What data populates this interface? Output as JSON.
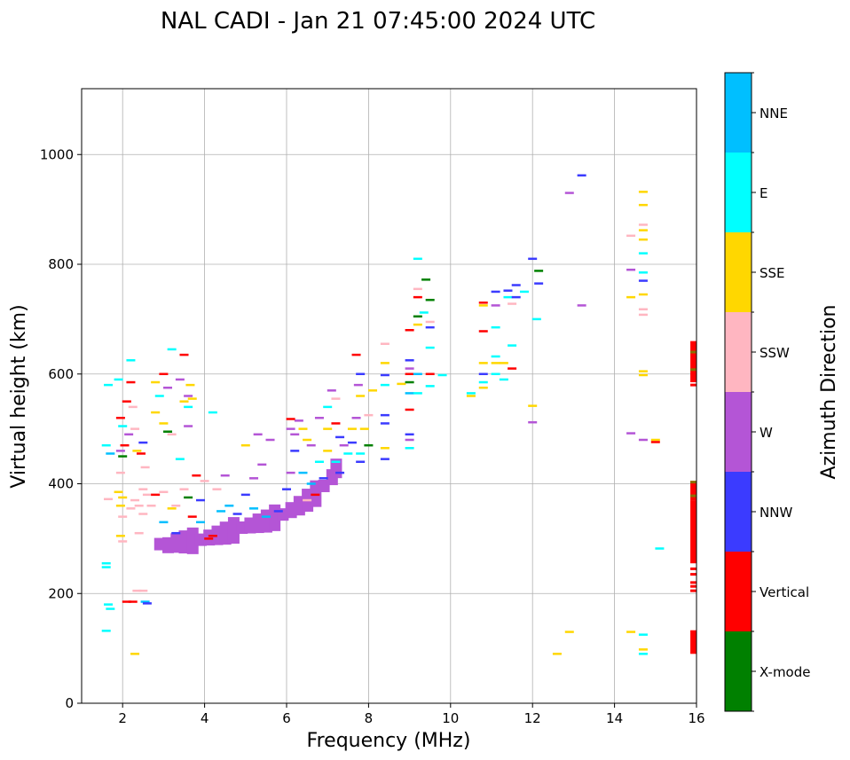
{
  "chart_data": {
    "type": "scatter",
    "title": "NAL CADI - Jan 21 07:45:00 2024 UTC",
    "xlabel": "Frequency (MHz)",
    "ylabel": "Virtual height (km)",
    "xlim": [
      1,
      16
    ],
    "ylim": [
      0,
      1120
    ],
    "xticks": [
      2,
      4,
      6,
      8,
      10,
      12,
      14,
      16
    ],
    "yticks": [
      0,
      200,
      400,
      600,
      800,
      1000
    ],
    "grid": true,
    "colorbar": {
      "label": "Azimuth Direction",
      "categories": [
        "X-mode",
        "Vertical",
        "NNW",
        "W",
        "SSW",
        "SSE",
        "E",
        "NNE"
      ],
      "colors": [
        "#008000",
        "#ff0000",
        "#3b3bff",
        "#b455d6",
        "#ffb6c1",
        "#ffd700",
        "#00ffff",
        "#00bfff"
      ]
    },
    "points": [
      {
        "x": 1.65,
        "y": 580,
        "c": "E"
      },
      {
        "x": 1.6,
        "y": 470,
        "c": "E"
      },
      {
        "x": 1.7,
        "y": 455,
        "c": "NNE"
      },
      {
        "x": 1.6,
        "y": 255,
        "c": "E"
      },
      {
        "x": 1.6,
        "y": 248,
        "c": "E"
      },
      {
        "x": 1.65,
        "y": 180,
        "c": "E"
      },
      {
        "x": 1.7,
        "y": 172,
        "c": "E"
      },
      {
        "x": 1.6,
        "y": 132,
        "c": "E"
      },
      {
        "x": 1.65,
        "y": 372,
        "c": "SSW"
      },
      {
        "x": 1.9,
        "y": 590,
        "c": "E"
      },
      {
        "x": 1.95,
        "y": 520,
        "c": "Vertical"
      },
      {
        "x": 2.0,
        "y": 505,
        "c": "E"
      },
      {
        "x": 1.95,
        "y": 460,
        "c": "W"
      },
      {
        "x": 2.05,
        "y": 470,
        "c": "Vertical"
      },
      {
        "x": 2.0,
        "y": 450,
        "c": "X-mode"
      },
      {
        "x": 1.95,
        "y": 420,
        "c": "SSW"
      },
      {
        "x": 1.9,
        "y": 385,
        "c": "SSE"
      },
      {
        "x": 2.0,
        "y": 375,
        "c": "SSE"
      },
      {
        "x": 1.95,
        "y": 360,
        "c": "SSE"
      },
      {
        "x": 2.0,
        "y": 340,
        "c": "SSW"
      },
      {
        "x": 1.95,
        "y": 305,
        "c": "SSE"
      },
      {
        "x": 2.0,
        "y": 295,
        "c": "SSW"
      },
      {
        "x": 2.1,
        "y": 550,
        "c": "Vertical"
      },
      {
        "x": 2.15,
        "y": 490,
        "c": "W"
      },
      {
        "x": 2.2,
        "y": 625,
        "c": "E"
      },
      {
        "x": 2.2,
        "y": 585,
        "c": "Vertical"
      },
      {
        "x": 2.25,
        "y": 540,
        "c": "SSW"
      },
      {
        "x": 2.3,
        "y": 500,
        "c": "SSW"
      },
      {
        "x": 2.35,
        "y": 460,
        "c": "SSE"
      },
      {
        "x": 2.45,
        "y": 455,
        "c": "Vertical"
      },
      {
        "x": 2.5,
        "y": 475,
        "c": "NNW"
      },
      {
        "x": 2.55,
        "y": 430,
        "c": "SSW"
      },
      {
        "x": 2.5,
        "y": 390,
        "c": "SSW"
      },
      {
        "x": 2.3,
        "y": 370,
        "c": "SSW"
      },
      {
        "x": 2.4,
        "y": 360,
        "c": "SSW"
      },
      {
        "x": 2.2,
        "y": 355,
        "c": "SSW"
      },
      {
        "x": 2.6,
        "y": 380,
        "c": "SSW"
      },
      {
        "x": 2.7,
        "y": 360,
        "c": "SSW"
      },
      {
        "x": 2.5,
        "y": 345,
        "c": "SSW"
      },
      {
        "x": 2.4,
        "y": 310,
        "c": "SSW"
      },
      {
        "x": 2.1,
        "y": 185,
        "c": "Vertical"
      },
      {
        "x": 2.25,
        "y": 185,
        "c": "Vertical"
      },
      {
        "x": 2.35,
        "y": 205,
        "c": "SSW"
      },
      {
        "x": 2.5,
        "y": 205,
        "c": "SSW"
      },
      {
        "x": 2.55,
        "y": 185,
        "c": "NNE"
      },
      {
        "x": 2.6,
        "y": 182,
        "c": "NNW"
      },
      {
        "x": 2.3,
        "y": 90,
        "c": "SSE"
      },
      {
        "x": 2.8,
        "y": 585,
        "c": "SSE"
      },
      {
        "x": 2.8,
        "y": 530,
        "c": "SSE"
      },
      {
        "x": 2.9,
        "y": 560,
        "c": "E"
      },
      {
        "x": 3.0,
        "y": 600,
        "c": "Vertical"
      },
      {
        "x": 3.1,
        "y": 575,
        "c": "W"
      },
      {
        "x": 3.2,
        "y": 645,
        "c": "E"
      },
      {
        "x": 3.0,
        "y": 510,
        "c": "SSE"
      },
      {
        "x": 3.1,
        "y": 495,
        "c": "X-mode"
      },
      {
        "x": 3.2,
        "y": 490,
        "c": "SSW"
      },
      {
        "x": 3.4,
        "y": 590,
        "c": "W"
      },
      {
        "x": 3.5,
        "y": 550,
        "c": "SSE"
      },
      {
        "x": 3.6,
        "y": 540,
        "c": "E"
      },
      {
        "x": 3.5,
        "y": 635,
        "c": "Vertical"
      },
      {
        "x": 3.65,
        "y": 580,
        "c": "SSE"
      },
      {
        "x": 3.6,
        "y": 560,
        "c": "W"
      },
      {
        "x": 3.7,
        "y": 555,
        "c": "SSE"
      },
      {
        "x": 3.4,
        "y": 445,
        "c": "E"
      },
      {
        "x": 3.6,
        "y": 505,
        "c": "W"
      },
      {
        "x": 4.2,
        "y": 530,
        "c": "E"
      },
      {
        "x": 2.8,
        "y": 380,
        "c": "Vertical"
      },
      {
        "x": 3.0,
        "y": 385,
        "c": "SSW"
      },
      {
        "x": 3.3,
        "y": 360,
        "c": "SSW"
      },
      {
        "x": 3.5,
        "y": 390,
        "c": "SSW"
      },
      {
        "x": 3.6,
        "y": 375,
        "c": "X-mode"
      },
      {
        "x": 3.8,
        "y": 415,
        "c": "Vertical"
      },
      {
        "x": 4.0,
        "y": 405,
        "c": "SSW"
      },
      {
        "x": 3.2,
        "y": 355,
        "c": "SSE"
      },
      {
        "x": 3.0,
        "y": 330,
        "c": "NNE"
      },
      {
        "x": 3.3,
        "y": 310,
        "c": "NNW"
      },
      {
        "x": 3.7,
        "y": 340,
        "c": "Vertical"
      },
      {
        "x": 3.9,
        "y": 330,
        "c": "NNE"
      },
      {
        "x": 4.1,
        "y": 300,
        "c": "Vertical"
      },
      {
        "x": 4.2,
        "y": 305,
        "c": "Vertical"
      },
      {
        "x": 3.9,
        "y": 370,
        "c": "NNW"
      },
      {
        "x": 4.3,
        "y": 390,
        "c": "SSW"
      },
      {
        "x": 4.5,
        "y": 415,
        "c": "W"
      },
      {
        "x": 4.4,
        "y": 350,
        "c": "NNE"
      },
      {
        "x": 4.6,
        "y": 360,
        "c": "NNE"
      },
      {
        "x": 4.8,
        "y": 345,
        "c": "NNW"
      },
      {
        "x": 5.0,
        "y": 380,
        "c": "NNW"
      },
      {
        "x": 5.2,
        "y": 410,
        "c": "W"
      },
      {
        "x": 5.4,
        "y": 435,
        "c": "W"
      },
      {
        "x": 5.0,
        "y": 470,
        "c": "SSE"
      },
      {
        "x": 5.3,
        "y": 490,
        "c": "W"
      },
      {
        "x": 5.6,
        "y": 480,
        "c": "W"
      },
      {
        "x": 5.5,
        "y": 340,
        "c": "NNE"
      },
      {
        "x": 5.2,
        "y": 355,
        "c": "NNE"
      },
      {
        "x": 5.8,
        "y": 350,
        "c": "NNW"
      },
      {
        "x": 6.0,
        "y": 390,
        "c": "NNW"
      },
      {
        "x": 6.1,
        "y": 420,
        "c": "W"
      },
      {
        "x": 6.2,
        "y": 460,
        "c": "NNW"
      },
      {
        "x": 6.1,
        "y": 500,
        "c": "W"
      },
      {
        "x": 6.3,
        "y": 515,
        "c": "W"
      },
      {
        "x": 6.1,
        "y": 518,
        "c": "Vertical"
      },
      {
        "x": 6.2,
        "y": 490,
        "c": "W"
      },
      {
        "x": 6.4,
        "y": 500,
        "c": "SSE"
      },
      {
        "x": 6.5,
        "y": 480,
        "c": "SSE"
      },
      {
        "x": 6.6,
        "y": 470,
        "c": "W"
      },
      {
        "x": 6.4,
        "y": 420,
        "c": "NNE"
      },
      {
        "x": 6.6,
        "y": 400,
        "c": "NNE"
      },
      {
        "x": 6.8,
        "y": 440,
        "c": "E"
      },
      {
        "x": 6.9,
        "y": 410,
        "c": "NNW"
      },
      {
        "x": 6.7,
        "y": 380,
        "c": "Vertical"
      },
      {
        "x": 6.5,
        "y": 370,
        "c": "SSW"
      },
      {
        "x": 6.8,
        "y": 520,
        "c": "W"
      },
      {
        "x": 7.0,
        "y": 540,
        "c": "E"
      },
      {
        "x": 7.1,
        "y": 570,
        "c": "W"
      },
      {
        "x": 7.2,
        "y": 555,
        "c": "SSW"
      },
      {
        "x": 7.0,
        "y": 500,
        "c": "SSE"
      },
      {
        "x": 7.2,
        "y": 510,
        "c": "Vertical"
      },
      {
        "x": 7.3,
        "y": 485,
        "c": "NNW"
      },
      {
        "x": 7.0,
        "y": 460,
        "c": "SSE"
      },
      {
        "x": 7.2,
        "y": 440,
        "c": "E"
      },
      {
        "x": 7.4,
        "y": 470,
        "c": "W"
      },
      {
        "x": 7.3,
        "y": 420,
        "c": "NNW"
      },
      {
        "x": 7.5,
        "y": 455,
        "c": "E"
      },
      {
        "x": 7.6,
        "y": 500,
        "c": "SSE"
      },
      {
        "x": 7.7,
        "y": 520,
        "c": "W"
      },
      {
        "x": 7.8,
        "y": 560,
        "c": "SSE"
      },
      {
        "x": 7.75,
        "y": 580,
        "c": "W"
      },
      {
        "x": 7.8,
        "y": 600,
        "c": "NNW"
      },
      {
        "x": 7.7,
        "y": 635,
        "c": "Vertical"
      },
      {
        "x": 7.6,
        "y": 475,
        "c": "NNW"
      },
      {
        "x": 7.8,
        "y": 440,
        "c": "NNW"
      },
      {
        "x": 7.8,
        "y": 455,
        "c": "E"
      },
      {
        "x": 8.0,
        "y": 470,
        "c": "X-mode"
      },
      {
        "x": 7.9,
        "y": 500,
        "c": "SSE"
      },
      {
        "x": 8.0,
        "y": 525,
        "c": "SSW"
      },
      {
        "x": 8.1,
        "y": 570,
        "c": "SSE"
      },
      {
        "x": 8.4,
        "y": 445,
        "c": "NNW"
      },
      {
        "x": 8.4,
        "y": 465,
        "c": "SSE"
      },
      {
        "x": 8.4,
        "y": 510,
        "c": "NNW"
      },
      {
        "x": 8.4,
        "y": 525,
        "c": "NNW"
      },
      {
        "x": 8.4,
        "y": 580,
        "c": "E"
      },
      {
        "x": 8.4,
        "y": 598,
        "c": "NNW"
      },
      {
        "x": 8.4,
        "y": 620,
        "c": "SSE"
      },
      {
        "x": 8.4,
        "y": 655,
        "c": "SSW"
      },
      {
        "x": 8.8,
        "y": 582,
        "c": "SSE"
      },
      {
        "x": 9.0,
        "y": 465,
        "c": "E"
      },
      {
        "x": 9.0,
        "y": 480,
        "c": "W"
      },
      {
        "x": 9.0,
        "y": 490,
        "c": "NNW"
      },
      {
        "x": 9.0,
        "y": 535,
        "c": "Vertical"
      },
      {
        "x": 9.0,
        "y": 565,
        "c": "NNE"
      },
      {
        "x": 9.0,
        "y": 585,
        "c": "X-mode"
      },
      {
        "x": 9.0,
        "y": 600,
        "c": "Vertical"
      },
      {
        "x": 9.0,
        "y": 610,
        "c": "W"
      },
      {
        "x": 9.0,
        "y": 625,
        "c": "NNW"
      },
      {
        "x": 9.0,
        "y": 680,
        "c": "Vertical"
      },
      {
        "x": 9.2,
        "y": 565,
        "c": "E"
      },
      {
        "x": 9.2,
        "y": 600,
        "c": "NNE"
      },
      {
        "x": 9.2,
        "y": 690,
        "c": "SSE"
      },
      {
        "x": 9.2,
        "y": 705,
        "c": "X-mode"
      },
      {
        "x": 9.2,
        "y": 740,
        "c": "Vertical"
      },
      {
        "x": 9.2,
        "y": 755,
        "c": "SSW"
      },
      {
        "x": 9.2,
        "y": 810,
        "c": "E"
      },
      {
        "x": 9.35,
        "y": 712,
        "c": "E"
      },
      {
        "x": 9.4,
        "y": 772,
        "c": "X-mode"
      },
      {
        "x": 9.5,
        "y": 735,
        "c": "X-mode"
      },
      {
        "x": 9.5,
        "y": 695,
        "c": "SSW"
      },
      {
        "x": 9.5,
        "y": 685,
        "c": "NNW"
      },
      {
        "x": 9.5,
        "y": 648,
        "c": "E"
      },
      {
        "x": 9.5,
        "y": 600,
        "c": "Vertical"
      },
      {
        "x": 9.5,
        "y": 578,
        "c": "E"
      },
      {
        "x": 9.8,
        "y": 598,
        "c": "E"
      },
      {
        "x": 10.5,
        "y": 565,
        "c": "E"
      },
      {
        "x": 10.5,
        "y": 560,
        "c": "SSE"
      },
      {
        "x": 10.8,
        "y": 575,
        "c": "SSE"
      },
      {
        "x": 10.8,
        "y": 585,
        "c": "E"
      },
      {
        "x": 10.8,
        "y": 600,
        "c": "NNW"
      },
      {
        "x": 10.8,
        "y": 620,
        "c": "SSE"
      },
      {
        "x": 10.8,
        "y": 678,
        "c": "Vertical"
      },
      {
        "x": 10.8,
        "y": 730,
        "c": "Vertical"
      },
      {
        "x": 10.8,
        "y": 725,
        "c": "SSE"
      },
      {
        "x": 11.1,
        "y": 600,
        "c": "E"
      },
      {
        "x": 11.1,
        "y": 620,
        "c": "SSE"
      },
      {
        "x": 11.1,
        "y": 632,
        "c": "E"
      },
      {
        "x": 11.1,
        "y": 685,
        "c": "E"
      },
      {
        "x": 11.1,
        "y": 750,
        "c": "NNW"
      },
      {
        "x": 11.1,
        "y": 725,
        "c": "W"
      },
      {
        "x": 11.3,
        "y": 590,
        "c": "E"
      },
      {
        "x": 11.3,
        "y": 620,
        "c": "SSE"
      },
      {
        "x": 11.4,
        "y": 740,
        "c": "E"
      },
      {
        "x": 11.4,
        "y": 752,
        "c": "NNW"
      },
      {
        "x": 11.5,
        "y": 728,
        "c": "SSW"
      },
      {
        "x": 11.5,
        "y": 610,
        "c": "Vertical"
      },
      {
        "x": 11.5,
        "y": 652,
        "c": "E"
      },
      {
        "x": 11.6,
        "y": 740,
        "c": "NNW"
      },
      {
        "x": 11.6,
        "y": 762,
        "c": "NNW"
      },
      {
        "x": 11.8,
        "y": 750,
        "c": "E"
      },
      {
        "x": 12.0,
        "y": 810,
        "c": "NNW"
      },
      {
        "x": 12.0,
        "y": 542,
        "c": "SSE"
      },
      {
        "x": 12.0,
        "y": 512,
        "c": "W"
      },
      {
        "x": 12.1,
        "y": 700,
        "c": "E"
      },
      {
        "x": 12.15,
        "y": 765,
        "c": "NNW"
      },
      {
        "x": 12.15,
        "y": 788,
        "c": "X-mode"
      },
      {
        "x": 12.6,
        "y": 90,
        "c": "SSE"
      },
      {
        "x": 12.9,
        "y": 130,
        "c": "SSE"
      },
      {
        "x": 12.9,
        "y": 930,
        "c": "W"
      },
      {
        "x": 13.2,
        "y": 962,
        "c": "NNW"
      },
      {
        "x": 13.2,
        "y": 725,
        "c": "W"
      },
      {
        "x": 14.4,
        "y": 130,
        "c": "SSE"
      },
      {
        "x": 14.4,
        "y": 492,
        "c": "W"
      },
      {
        "x": 14.4,
        "y": 740,
        "c": "SSE"
      },
      {
        "x": 14.4,
        "y": 790,
        "c": "W"
      },
      {
        "x": 14.4,
        "y": 852,
        "c": "SSW"
      },
      {
        "x": 14.7,
        "y": 125,
        "c": "E"
      },
      {
        "x": 14.7,
        "y": 98,
        "c": "SSE"
      },
      {
        "x": 14.7,
        "y": 90,
        "c": "E"
      },
      {
        "x": 14.7,
        "y": 480,
        "c": "W"
      },
      {
        "x": 14.7,
        "y": 598,
        "c": "SSE"
      },
      {
        "x": 14.7,
        "y": 605,
        "c": "SSE"
      },
      {
        "x": 14.7,
        "y": 708,
        "c": "SSW"
      },
      {
        "x": 14.7,
        "y": 718,
        "c": "SSW"
      },
      {
        "x": 14.7,
        "y": 745,
        "c": "SSE"
      },
      {
        "x": 14.7,
        "y": 770,
        "c": "NNW"
      },
      {
        "x": 14.7,
        "y": 785,
        "c": "E"
      },
      {
        "x": 14.7,
        "y": 820,
        "c": "E"
      },
      {
        "x": 14.7,
        "y": 845,
        "c": "SSE"
      },
      {
        "x": 14.7,
        "y": 862,
        "c": "SSE"
      },
      {
        "x": 14.7,
        "y": 872,
        "c": "SSW"
      },
      {
        "x": 14.7,
        "y": 908,
        "c": "SSE"
      },
      {
        "x": 14.7,
        "y": 932,
        "c": "SSE"
      },
      {
        "x": 15.0,
        "y": 480,
        "c": "SSE"
      },
      {
        "x": 15.0,
        "y": 476,
        "c": "Vertical"
      },
      {
        "x": 15.1,
        "y": 282,
        "c": "E"
      }
    ],
    "w_cluster": [
      {
        "x": 2.9,
        "y": 290
      },
      {
        "x": 3.1,
        "y": 288
      },
      {
        "x": 3.3,
        "y": 292
      },
      {
        "x": 3.5,
        "y": 294
      },
      {
        "x": 3.7,
        "y": 296
      },
      {
        "x": 3.9,
        "y": 298
      },
      {
        "x": 4.1,
        "y": 302
      },
      {
        "x": 4.3,
        "y": 306
      },
      {
        "x": 4.5,
        "y": 310
      },
      {
        "x": 4.7,
        "y": 315
      },
      {
        "x": 4.9,
        "y": 320
      },
      {
        "x": 5.1,
        "y": 324
      },
      {
        "x": 5.3,
        "y": 328
      },
      {
        "x": 5.5,
        "y": 332
      },
      {
        "x": 5.7,
        "y": 338
      },
      {
        "x": 5.9,
        "y": 344
      },
      {
        "x": 6.1,
        "y": 352
      },
      {
        "x": 6.3,
        "y": 360
      },
      {
        "x": 6.5,
        "y": 370
      },
      {
        "x": 6.7,
        "y": 382
      },
      {
        "x": 6.9,
        "y": 396
      },
      {
        "x": 7.1,
        "y": 412
      },
      {
        "x": 7.2,
        "y": 428
      }
    ],
    "right_bars": [
      {
        "y0": 585,
        "y1": 660,
        "c": "Vertical"
      },
      {
        "y0": 370,
        "y1": 405,
        "c": "Vertical"
      },
      {
        "y0": 255,
        "y1": 370,
        "c": "Vertical"
      },
      {
        "y0": 90,
        "y1": 133,
        "c": "Vertical"
      }
    ],
    "right_lines": [
      {
        "y": 640,
        "c": "X-mode"
      },
      {
        "y": 608,
        "c": "X-mode"
      },
      {
        "y": 403,
        "c": "X-mode"
      },
      {
        "y": 378,
        "c": "X-mode"
      },
      {
        "y": 580,
        "c": "Vertical"
      },
      {
        "y": 245,
        "c": "Vertical"
      },
      {
        "y": 235,
        "c": "Vertical"
      },
      {
        "y": 220,
        "c": "Vertical"
      },
      {
        "y": 213,
        "c": "Vertical"
      },
      {
        "y": 205,
        "c": "Vertical"
      }
    ]
  }
}
